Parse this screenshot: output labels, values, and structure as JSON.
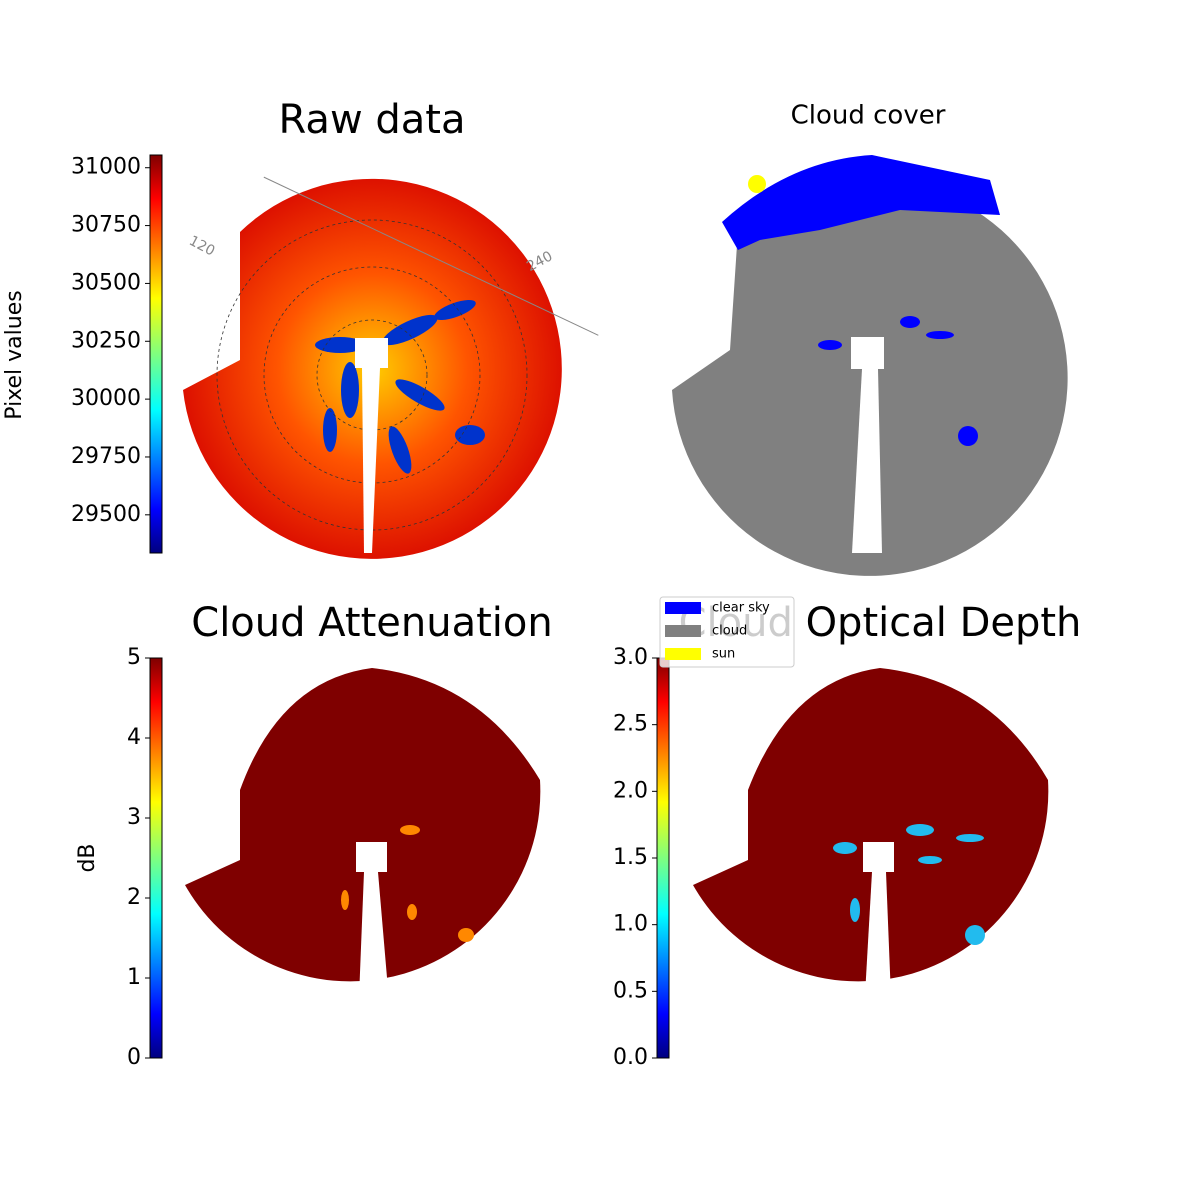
{
  "chart_data": [
    {
      "type": "image",
      "title": "Raw data",
      "colormap": "jet",
      "colorbar_label": "Pixel values",
      "ylim": [
        29335,
        31055
      ],
      "yticks": [
        29500,
        29750,
        30000,
        30250,
        30500,
        30750,
        31000
      ],
      "annotations": [
        "120",
        "240"
      ]
    },
    {
      "type": "image",
      "title": "Cloud cover",
      "series": [
        {
          "name": "clear sky",
          "color": "#0000ff"
        },
        {
          "name": "cloud",
          "color": "#808080"
        },
        {
          "name": "sun",
          "color": "#ffff00"
        }
      ]
    },
    {
      "type": "image",
      "title": "Cloud Attenuation",
      "colormap": "jet",
      "colorbar_label": "dB",
      "ylim": [
        0,
        5
      ],
      "yticks": [
        0,
        1,
        2,
        3,
        4,
        5
      ]
    },
    {
      "type": "image",
      "title": "Cloud Optical Depth",
      "colormap": "jet",
      "ylim": [
        0,
        3
      ],
      "yticks": [
        {
          "value": 0,
          "label": "0.0"
        },
        {
          "value": 0.5,
          "label": "0.5"
        },
        {
          "value": 1,
          "label": "1.0"
        },
        {
          "value": 1.5,
          "label": "1.5"
        },
        {
          "value": 2,
          "label": "2.0"
        },
        {
          "value": 2.5,
          "label": "2.5"
        },
        {
          "value": 3,
          "label": "3.0"
        }
      ]
    }
  ]
}
